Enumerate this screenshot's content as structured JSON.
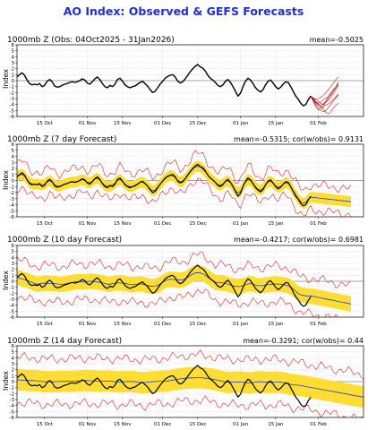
{
  "figure": {
    "title": "AO Index: Observed & GEFS Forecasts",
    "title_color": "#1c2fd6",
    "colors": {
      "observed": "#000000",
      "ensemble_mean": "#1f3fbf",
      "spread": "#ffdd33",
      "bounds": "#e02020",
      "forecast_members": "#b20000",
      "grid": "#c8c8c8"
    }
  },
  "chart_data": [
    {
      "type": "line",
      "title": "1000mb Z (Obs: 04Oct2025 - 31Jan2026)",
      "stat": "mean=-0.5025",
      "ylabel": "Index",
      "ylim": [
        -6,
        6
      ],
      "yticks": [
        -6,
        -5,
        -4,
        -3,
        -2,
        -1,
        0,
        1,
        2,
        3,
        4,
        5,
        6
      ],
      "xlim": [
        0,
        138
      ],
      "xticks": [
        {
          "x": 11,
          "label": "15 Oct"
        },
        {
          "x": 28,
          "label": "01 Nov"
        },
        {
          "x": 42,
          "label": "15 Nov"
        },
        {
          "x": 58,
          "label": "01 Dec"
        },
        {
          "x": 72,
          "label": "15 Dec"
        },
        {
          "x": 89,
          "label": "01 Jan"
        },
        {
          "x": 103,
          "label": "15 Jan"
        },
        {
          "x": 120,
          "label": "01 Feb"
        }
      ],
      "grid": true,
      "series": [
        {
          "role": "observed",
          "values": [
            0.6,
            1.0,
            1.3,
            0.9,
            0.1,
            -0.5,
            -0.7,
            -0.6,
            -0.7,
            -0.5,
            -1.0,
            -0.8,
            -0.1,
            0.2,
            -0.2,
            -0.9,
            -1.1,
            -1.0,
            -0.8,
            -0.6,
            -0.5,
            -0.3,
            -0.2,
            -0.3,
            -0.2,
            0.0,
            0.3,
            0.1,
            -0.4,
            -0.6,
            -0.2,
            0.3,
            0.6,
            0.2,
            -0.5,
            -1.0,
            -1.2,
            -0.8,
            -1.0,
            -0.6,
            0.2,
            0.4,
            -0.1,
            -0.7,
            -1.0,
            -1.2,
            -1.0,
            -0.9,
            -0.6,
            -0.3,
            -0.1,
            -0.5,
            -0.9,
            -1.5,
            -2.0,
            -1.8,
            -1.2,
            -0.6,
            -0.1,
            0.4,
            0.7,
            0.9,
            1.0,
            0.6,
            -0.1,
            -0.4,
            -0.2,
            0.3,
            0.9,
            1.5,
            2.0,
            2.4,
            2.7,
            2.3,
            2.1,
            1.6,
            0.9,
            0.4,
            0.1,
            -0.3,
            -0.8,
            -1.0,
            -0.7,
            -0.1,
            0.2,
            -0.3,
            -1.0,
            -1.8,
            -2.6,
            -2.1,
            -1.0,
            -0.1,
            0.4,
            0.1,
            -0.5,
            -1.2,
            -1.6,
            -1.9,
            -1.5,
            -0.7,
            -0.1,
            0.1,
            -0.4,
            -1.0,
            -1.4,
            -1.1,
            -0.6,
            -0.2,
            -0.3,
            -1.0,
            -1.8,
            -2.6,
            -3.1,
            -3.8,
            -4.2,
            -4.0,
            -3.2,
            -2.6
          ]
        },
        {
          "role": "forecast_member",
          "start": 117,
          "values": [
            -2.6,
            -3.2,
            -3.8,
            -4.2,
            -4.5,
            -4.2,
            -3.6,
            -3.0,
            -2.4,
            -1.8,
            -1.2,
            -0.5
          ]
        },
        {
          "role": "forecast_member",
          "start": 117,
          "values": [
            -2.6,
            -3.0,
            -3.2,
            -3.4,
            -3.8,
            -4.0,
            -3.6,
            -3.3,
            -2.8,
            -2.2,
            -1.5,
            -0.9
          ]
        },
        {
          "role": "forecast_member",
          "start": 117,
          "values": [
            -2.6,
            -3.4,
            -4.1,
            -4.6,
            -5.0,
            -5.2,
            -5.0,
            -4.5,
            -4.0,
            -3.4,
            -2.9,
            -2.4
          ]
        },
        {
          "role": "forecast_member",
          "start": 117,
          "values": [
            -2.6,
            -2.9,
            -3.1,
            -3.0,
            -2.8,
            -2.5,
            -2.0,
            -1.5,
            -1.0,
            -0.4,
            0.2,
            0.6
          ]
        },
        {
          "role": "forecast_member",
          "start": 117,
          "values": [
            -2.6,
            -3.3,
            -3.7,
            -3.9,
            -4.3,
            -4.8,
            -5.3,
            -5.6,
            -5.2,
            -4.6,
            -4.1,
            -3.8
          ]
        },
        {
          "role": "forecast_member",
          "start": 117,
          "values": [
            -2.6,
            -3.1,
            -3.5,
            -3.8,
            -3.6,
            -3.2,
            -2.9,
            -2.7,
            -2.3,
            -1.7,
            -1.0,
            -0.2
          ]
        },
        {
          "role": "forecast_member",
          "start": 117,
          "values": [
            -2.6,
            -3.5,
            -4.4,
            -4.9,
            -4.7,
            -4.4,
            -4.1,
            -3.9,
            -3.6,
            -3.1,
            -2.7,
            -2.2
          ]
        },
        {
          "role": "forecast_member",
          "start": 117,
          "values": [
            -2.6,
            -3.0,
            -3.6,
            -4.0,
            -4.1,
            -3.9,
            -3.4,
            -2.7,
            -2.0,
            -1.5,
            -1.1,
            -0.7
          ]
        }
      ]
    },
    {
      "type": "line",
      "title": "1000mb Z (7 day Forecast)",
      "stat": "mean=-0.5315; cor(w/obs)= 0.9131",
      "ylabel": "Index",
      "ylim": [
        -6,
        6
      ],
      "yticks": [
        -6,
        -5,
        -4,
        -3,
        -2,
        -1,
        0,
        1,
        2,
        3,
        4,
        5,
        6
      ],
      "xlim": [
        0,
        138
      ],
      "xticks": [
        {
          "x": 11,
          "label": "15 Oct"
        },
        {
          "x": 28,
          "label": "01 Nov"
        },
        {
          "x": 42,
          "label": "15 Nov"
        },
        {
          "x": 58,
          "label": "01 Dec"
        },
        {
          "x": 72,
          "label": "15 Dec"
        },
        {
          "x": 89,
          "label": "01 Jan"
        },
        {
          "x": 103,
          "label": "15 Jan"
        },
        {
          "x": 120,
          "label": "01 Feb"
        }
      ],
      "grid": true,
      "series": [
        {
          "role": "observed",
          "values": [
            0.6,
            1.0,
            1.3,
            0.9,
            0.1,
            -0.5,
            -0.7,
            -0.6,
            -0.7,
            -0.5,
            -1.0,
            -0.8,
            -0.1,
            0.2,
            -0.2,
            -0.9,
            -1.1,
            -1.0,
            -0.8,
            -0.6,
            -0.5,
            -0.3,
            -0.2,
            -0.3,
            -0.2,
            0.0,
            0.3,
            0.1,
            -0.4,
            -0.6,
            -0.2,
            0.3,
            0.6,
            0.2,
            -0.5,
            -1.0,
            -1.2,
            -0.8,
            -1.0,
            -0.6,
            0.2,
            0.4,
            -0.1,
            -0.7,
            -1.0,
            -1.2,
            -1.0,
            -0.9,
            -0.6,
            -0.3,
            -0.1,
            -0.5,
            -0.9,
            -1.5,
            -2.0,
            -1.8,
            -1.2,
            -0.6,
            -0.1,
            0.4,
            0.7,
            0.9,
            1.0,
            0.6,
            -0.1,
            -0.4,
            -0.2,
            0.3,
            0.9,
            1.5,
            2.0,
            2.4,
            2.7,
            2.3,
            2.1,
            1.6,
            0.9,
            0.4,
            0.1,
            -0.3,
            -0.8,
            -1.0,
            -0.7,
            -0.1,
            0.2,
            -0.3,
            -1.0,
            -1.8,
            -2.6,
            -2.1,
            -1.0,
            -0.1,
            0.4,
            0.1,
            -0.5,
            -1.2,
            -1.6,
            -1.9,
            -1.5,
            -0.7,
            -0.1,
            0.1,
            -0.4,
            -1.0,
            -1.4,
            -1.1,
            -0.6,
            -0.2,
            -0.3,
            -1.0,
            -1.8,
            -2.6,
            -3.1,
            -3.8,
            -4.2,
            -4.0,
            -3.2,
            -2.6
          ]
        },
        {
          "role": "ensemble_mean",
          "smooth": 1,
          "offset": 0,
          "scale": 0.95,
          "start": 0,
          "end": 133,
          "tail": -3.5
        },
        {
          "role": "spread_band",
          "width": 0.9
        },
        {
          "role": "bounds",
          "width": 2.1
        }
      ]
    },
    {
      "type": "line",
      "title": "1000mb Z (10 day Forecast)",
      "stat": "mean=-0.4217; cor(w/obs)= 0.6981",
      "ylabel": "Index",
      "ylim": [
        -6,
        6
      ],
      "yticks": [
        -6,
        -5,
        -4,
        -3,
        -2,
        -1,
        0,
        1,
        2,
        3,
        4,
        5,
        6
      ],
      "xlim": [
        0,
        138
      ],
      "xticks": [
        {
          "x": 11,
          "label": "15 Oct"
        },
        {
          "x": 28,
          "label": "01 Nov"
        },
        {
          "x": 42,
          "label": "15 Nov"
        },
        {
          "x": 58,
          "label": "01 Dec"
        },
        {
          "x": 72,
          "label": "15 Dec"
        },
        {
          "x": 89,
          "label": "01 Jan"
        },
        {
          "x": 103,
          "label": "15 Jan"
        },
        {
          "x": 120,
          "label": "01 Feb"
        }
      ],
      "grid": true,
      "series": [
        {
          "role": "observed",
          "values": [
            0.6,
            1.0,
            1.3,
            0.9,
            0.1,
            -0.5,
            -0.7,
            -0.6,
            -0.7,
            -0.5,
            -1.0,
            -0.8,
            -0.1,
            0.2,
            -0.2,
            -0.9,
            -1.1,
            -1.0,
            -0.8,
            -0.6,
            -0.5,
            -0.3,
            -0.2,
            -0.3,
            -0.2,
            0.0,
            0.3,
            0.1,
            -0.4,
            -0.6,
            -0.2,
            0.3,
            0.6,
            0.2,
            -0.5,
            -1.0,
            -1.2,
            -0.8,
            -1.0,
            -0.6,
            0.2,
            0.4,
            -0.1,
            -0.7,
            -1.0,
            -1.2,
            -1.0,
            -0.9,
            -0.6,
            -0.3,
            -0.1,
            -0.5,
            -0.9,
            -1.5,
            -2.0,
            -1.8,
            -1.2,
            -0.6,
            -0.1,
            0.4,
            0.7,
            0.9,
            1.0,
            0.6,
            -0.1,
            -0.4,
            -0.2,
            0.3,
            0.9,
            1.5,
            2.0,
            2.4,
            2.7,
            2.3,
            2.1,
            1.6,
            0.9,
            0.4,
            0.1,
            -0.3,
            -0.8,
            -1.0,
            -0.7,
            -0.1,
            0.2,
            -0.3,
            -1.0,
            -1.8,
            -2.6,
            -2.1,
            -1.0,
            -0.1,
            0.4,
            0.1,
            -0.5,
            -1.2,
            -1.6,
            -1.9,
            -1.5,
            -0.7,
            -0.1,
            0.1,
            -0.4,
            -1.0,
            -1.4,
            -1.1,
            -0.6,
            -0.2,
            -0.3,
            -1.0,
            -1.8,
            -2.6,
            -3.1,
            -3.8,
            -4.2,
            -4.0,
            -3.2,
            -2.6
          ]
        },
        {
          "role": "ensemble_mean",
          "smooth": 3,
          "offset": 0,
          "scale": 0.7,
          "start": 0,
          "end": 133,
          "tail": -3.8
        },
        {
          "role": "spread_band",
          "width": 1.3
        },
        {
          "role": "bounds",
          "width": 3.0
        }
      ]
    },
    {
      "type": "line",
      "title": "1000mb Z (14 day Forecast)",
      "stat": "mean=-0.3291; cor(w/obs)= 0.44",
      "ylabel": "Index",
      "ylim": [
        -6,
        6
      ],
      "yticks": [
        -6,
        -5,
        -4,
        -3,
        -2,
        -1,
        0,
        1,
        2,
        3,
        4,
        5,
        6
      ],
      "xlim": [
        0,
        138
      ],
      "xticks": [
        {
          "x": 11,
          "label": "15 Oct"
        },
        {
          "x": 28,
          "label": "01 Nov"
        },
        {
          "x": 42,
          "label": "15 Nov"
        },
        {
          "x": 58,
          "label": "01 Dec"
        },
        {
          "x": 72,
          "label": "15 Dec"
        },
        {
          "x": 89,
          "label": "01 Jan"
        },
        {
          "x": 103,
          "label": "15 Jan"
        },
        {
          "x": 120,
          "label": "01 Feb"
        }
      ],
      "grid": true,
      "series": [
        {
          "role": "observed",
          "values": [
            0.6,
            1.0,
            1.3,
            0.9,
            0.1,
            -0.5,
            -0.7,
            -0.6,
            -0.7,
            -0.5,
            -1.0,
            -0.8,
            -0.1,
            0.2,
            -0.2,
            -0.9,
            -1.1,
            -1.0,
            -0.8,
            -0.6,
            -0.5,
            -0.3,
            -0.2,
            -0.3,
            -0.2,
            0.0,
            0.3,
            0.1,
            -0.4,
            -0.6,
            -0.2,
            0.3,
            0.6,
            0.2,
            -0.5,
            -1.0,
            -1.2,
            -0.8,
            -1.0,
            -0.6,
            0.2,
            0.4,
            -0.1,
            -0.7,
            -1.0,
            -1.2,
            -1.0,
            -0.9,
            -0.6,
            -0.3,
            -0.1,
            -0.5,
            -0.9,
            -1.5,
            -2.0,
            -1.8,
            -1.2,
            -0.6,
            -0.1,
            0.4,
            0.7,
            0.9,
            1.0,
            0.6,
            -0.1,
            -0.4,
            -0.2,
            0.3,
            0.9,
            1.5,
            2.0,
            2.4,
            2.7,
            2.3,
            2.1,
            1.6,
            0.9,
            0.4,
            0.1,
            -0.3,
            -0.8,
            -1.0,
            -0.7,
            -0.1,
            0.2,
            -0.3,
            -1.0,
            -1.8,
            -2.6,
            -2.1,
            -1.0,
            -0.1,
            0.4,
            0.1,
            -0.5,
            -1.2,
            -1.6,
            -1.9,
            -1.5,
            -0.7,
            -0.1,
            0.1,
            -0.4,
            -1.0,
            -1.4,
            -1.1,
            -0.6,
            -0.2,
            -0.3,
            -1.0,
            -1.8,
            -2.6,
            -3.1,
            -3.8,
            -4.2,
            -4.0,
            -3.2,
            -2.6
          ]
        },
        {
          "role": "ensemble_mean",
          "smooth": 6,
          "offset": 0.2,
          "scale": 0.35,
          "start": 0,
          "end": 138,
          "tail": -2.6
        },
        {
          "role": "spread_band",
          "width": 1.8
        },
        {
          "role": "bounds",
          "width": 3.8
        }
      ]
    }
  ]
}
